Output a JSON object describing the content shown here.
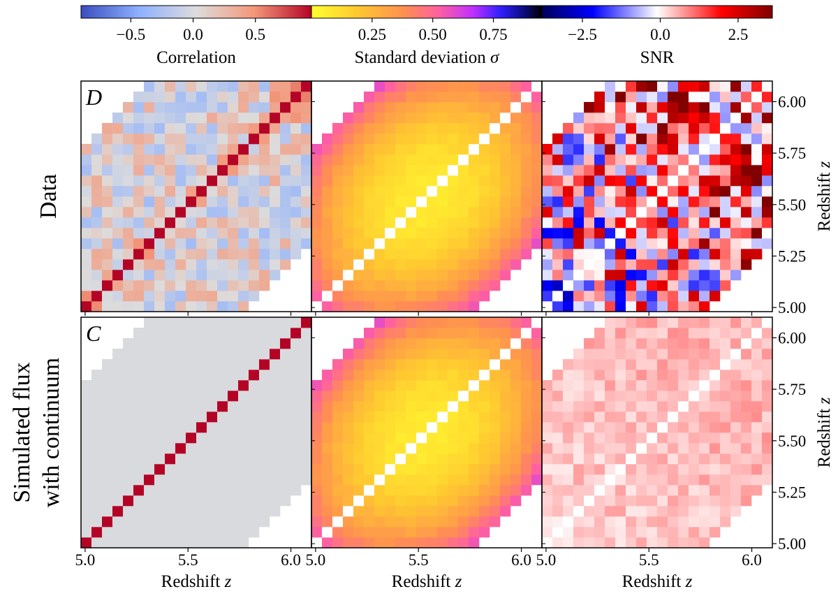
{
  "chart_data": {
    "type": "heatmap",
    "axis_quantity": "z",
    "grid": "22x22 redshift bins",
    "z_range": [
      4.98,
      6.1
    ],
    "colorbars": [
      {
        "key": "corr",
        "label_text": "Correlation",
        "label_symbol": "",
        "range": [
          -0.9,
          0.95
        ],
        "ticks": [
          "−0.5",
          "0.0",
          "0.5"
        ],
        "tick_values": [
          -0.5,
          0.0,
          0.5
        ]
      },
      {
        "key": "std",
        "label_text": "Standard deviation ",
        "label_symbol": "σ",
        "range": [
          0.0,
          0.95
        ],
        "ticks": [
          "0.25",
          "0.50",
          "0.75"
        ],
        "tick_values": [
          0.25,
          0.5,
          0.75
        ]
      },
      {
        "key": "snr",
        "label_text": "SNR",
        "label_symbol": "",
        "range": [
          -3.8,
          3.6
        ],
        "ticks": [
          "−2.5",
          "0.0",
          "2.5"
        ],
        "tick_values": [
          -2.5,
          0.0,
          2.5
        ]
      }
    ],
    "rows": [
      {
        "key": "data",
        "label_lines": [
          "Data"
        ],
        "panel_label": "D",
        "corr_scale": 1.0,
        "snr_scale": 1.0
      },
      {
        "key": "sim",
        "label_lines": [
          "Simulated flux",
          "with continuum"
        ],
        "panel_label": "C",
        "corr_scale": 0.0,
        "snr_scale": 0.12
      }
    ],
    "xaxis": {
      "label": "Redshift ",
      "symbol": "z",
      "ticks": [
        "5.0",
        "5.5",
        "6.0"
      ],
      "tick_values": [
        5.0,
        5.5,
        6.0
      ]
    },
    "yaxis": {
      "label": "Redshift ",
      "symbol": "z",
      "ticks": [
        "5.00",
        "5.25",
        "5.50",
        "5.75",
        "6.00"
      ],
      "tick_values": [
        5.0,
        5.25,
        5.5,
        5.75,
        6.0
      ]
    }
  }
}
